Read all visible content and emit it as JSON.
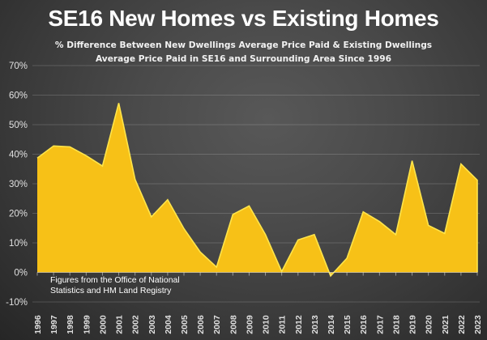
{
  "chart_data": {
    "type": "area",
    "title": "SE16 New Homes vs Existing Homes",
    "subtitle_lines": [
      "% Difference Between New Dwellings Average Price Paid & Existing Dwellings",
      "Average Price Paid in SE16 and Surrounding Area Since 1996"
    ],
    "annotation_lines": [
      "Figures from the Office of National",
      "Statistics and HM Land Registry"
    ],
    "xlabel": "",
    "ylabel": "",
    "ylim": [
      -10,
      70
    ],
    "yticks": [
      70,
      60,
      50,
      40,
      30,
      20,
      10,
      0,
      -10
    ],
    "ytick_labels": [
      "70%",
      "60%",
      "50%",
      "40%",
      "30%",
      "20%",
      "10%",
      "0%",
      "-10%"
    ],
    "categories": [
      "1996",
      "1997",
      "1998",
      "1999",
      "2000",
      "2001",
      "2002",
      "2003",
      "2004",
      "2005",
      "2006",
      "2007",
      "2008",
      "2009",
      "2010",
      "2011",
      "2012",
      "2013",
      "2014",
      "2015",
      "2016",
      "2017",
      "2018",
      "2019",
      "2020",
      "2021",
      "2022",
      "2023"
    ],
    "series": [
      {
        "name": "% difference",
        "values": [
          38.7,
          42.8,
          42.5,
          39.5,
          36.0,
          57.3,
          31.5,
          18.8,
          24.6,
          14.8,
          6.9,
          1.8,
          19.6,
          22.5,
          12.8,
          0.3,
          11.0,
          12.8,
          -1.2,
          4.8,
          20.5,
          17.2,
          12.8,
          37.8,
          15.9,
          13.2,
          36.7,
          31.2
        ],
        "color": "#F7C117",
        "edge_color": "#FFE54A"
      }
    ],
    "grid": true,
    "legend": "none"
  }
}
